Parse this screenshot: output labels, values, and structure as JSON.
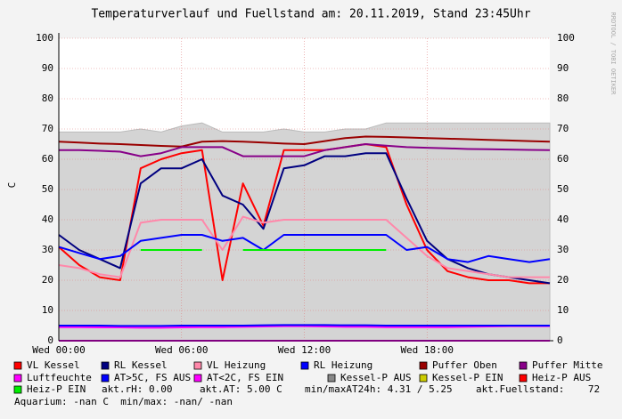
{
  "chart_data": {
    "type": "line",
    "title": "Temperaturverlauf und Fuellstand am: 20.11.2019, Stand 23:45Uhr",
    "y_label": "C",
    "watermark": "RRDTOOL / TOBI OETIKER",
    "x": [
      0,
      1,
      2,
      3,
      4,
      5,
      6,
      7,
      8,
      9,
      10,
      11,
      12,
      13,
      14,
      15,
      16,
      17,
      18,
      19,
      20,
      21,
      22,
      23,
      24
    ],
    "xlim": [
      0,
      24
    ],
    "xticks": [
      {
        "value": 0,
        "label": "Wed 00:00"
      },
      {
        "value": 6,
        "label": "Wed 06:00"
      },
      {
        "value": 12,
        "label": "Wed 12:00"
      },
      {
        "value": 18,
        "label": "Wed 18:00"
      }
    ],
    "ylim": [
      0,
      100
    ],
    "yticks": [
      0,
      10,
      20,
      30,
      40,
      50,
      60,
      70,
      80,
      90,
      100
    ],
    "grid": true,
    "series": [
      {
        "name": "VL Kessel",
        "color": "#ff0000",
        "values": [
          31,
          25,
          21,
          20,
          57,
          60,
          62,
          63,
          20,
          52,
          38,
          63,
          63,
          63,
          64,
          65,
          64,
          45,
          30,
          23,
          21,
          20,
          20,
          19,
          19
        ]
      },
      {
        "name": "RL Kessel",
        "color": "#000080",
        "values": [
          35,
          30,
          27,
          24,
          52,
          57,
          57,
          60,
          48,
          45,
          37,
          57,
          58,
          61,
          61,
          62,
          62,
          47,
          33,
          27,
          24,
          22,
          21,
          20,
          19
        ]
      },
      {
        "name": "VL Heizung",
        "color": "#ff88aa",
        "values": [
          25,
          24,
          22,
          21,
          39,
          40,
          40,
          40,
          30,
          41,
          39,
          40,
          40,
          40,
          40,
          40,
          40,
          34,
          28,
          24,
          23,
          22,
          21,
          21,
          21
        ]
      },
      {
        "name": "RL Heizung",
        "color": "#0000ff",
        "values": [
          31,
          29,
          27,
          28,
          33,
          34,
          35,
          35,
          33,
          34,
          30,
          35,
          35,
          35,
          35,
          35,
          35,
          30,
          31,
          27,
          26,
          28,
          27,
          26,
          27
        ]
      },
      {
        "name": "Puffer Oben",
        "color": "#990000",
        "values": [
          65.8,
          65.5,
          65.2,
          65,
          64.7,
          64.4,
          64.2,
          65.8,
          66,
          65.8,
          65.5,
          65.2,
          65,
          66,
          67,
          67.5,
          67.4,
          67.2,
          67,
          66.8,
          66.6,
          66.4,
          66.2,
          66,
          65.8
        ]
      },
      {
        "name": "Puffer Mitte",
        "color": "#880088",
        "values": [
          63,
          63,
          62.8,
          62.5,
          61,
          62,
          64,
          64,
          64,
          61,
          61,
          61,
          61,
          63,
          64,
          65,
          64.5,
          64,
          63.8,
          63.6,
          63.4,
          63.3,
          63.2,
          63.1,
          63
        ]
      },
      {
        "name": "Luftfeuchte",
        "color": "#ff00ff",
        "values": [
          4.5,
          4.5,
          4.4,
          4.4,
          4.3,
          4.3,
          4.4,
          4.5,
          4.5,
          4.6,
          4.7,
          4.8,
          4.8,
          4.7,
          4.6,
          4.6,
          4.5,
          4.5,
          4.5,
          4.5,
          4.6,
          4.7,
          4.8,
          4.8,
          4.8
        ]
      },
      {
        "name": "AT>5C, FS AUS",
        "color": "#0000ff",
        "values": [
          5,
          5,
          5,
          4.9,
          4.9,
          4.9,
          5,
          5,
          5,
          5,
          5.1,
          5.2,
          5.2,
          5.2,
          5.1,
          5.1,
          5,
          5,
          5,
          5,
          5,
          5,
          5,
          5,
          5
        ]
      },
      {
        "name": "AT<2C, FS EIN",
        "color": "#ff00ff",
        "values": [
          0,
          0,
          0,
          0,
          0,
          0,
          0,
          0,
          0,
          0,
          0,
          0,
          0,
          0,
          0,
          0,
          0,
          0,
          0,
          0,
          0,
          0,
          0,
          0,
          0
        ]
      },
      {
        "name": "Kessel-P AUS",
        "color": "#888888",
        "style": "area",
        "values": [
          69,
          69,
          69,
          69,
          70,
          69,
          71,
          72,
          69,
          69,
          69,
          70,
          69,
          69,
          70,
          70,
          72,
          72,
          72,
          72,
          72,
          72,
          72,
          72,
          72
        ]
      },
      {
        "name": "Kessel-P EIN",
        "color": "#cccc00"
      },
      {
        "name": "Heiz-P AUS",
        "color": "#ff0000"
      },
      {
        "name": "Heiz-P EIN",
        "color": "#00ee00",
        "values": [
          null,
          null,
          null,
          null,
          30,
          30,
          30,
          30,
          null,
          30,
          30,
          30,
          30,
          30,
          30,
          30,
          30,
          null,
          null,
          null,
          null,
          null,
          null,
          null,
          null
        ]
      }
    ],
    "footer": [
      "akt.rH: 0.00",
      "akt.AT: 5.00 C",
      "min/maxAT24h: 4.31 / 5.25",
      "akt.Fuellstand:    72",
      "Aquarium: -nan C  min/max: -nan/ -nan"
    ]
  }
}
